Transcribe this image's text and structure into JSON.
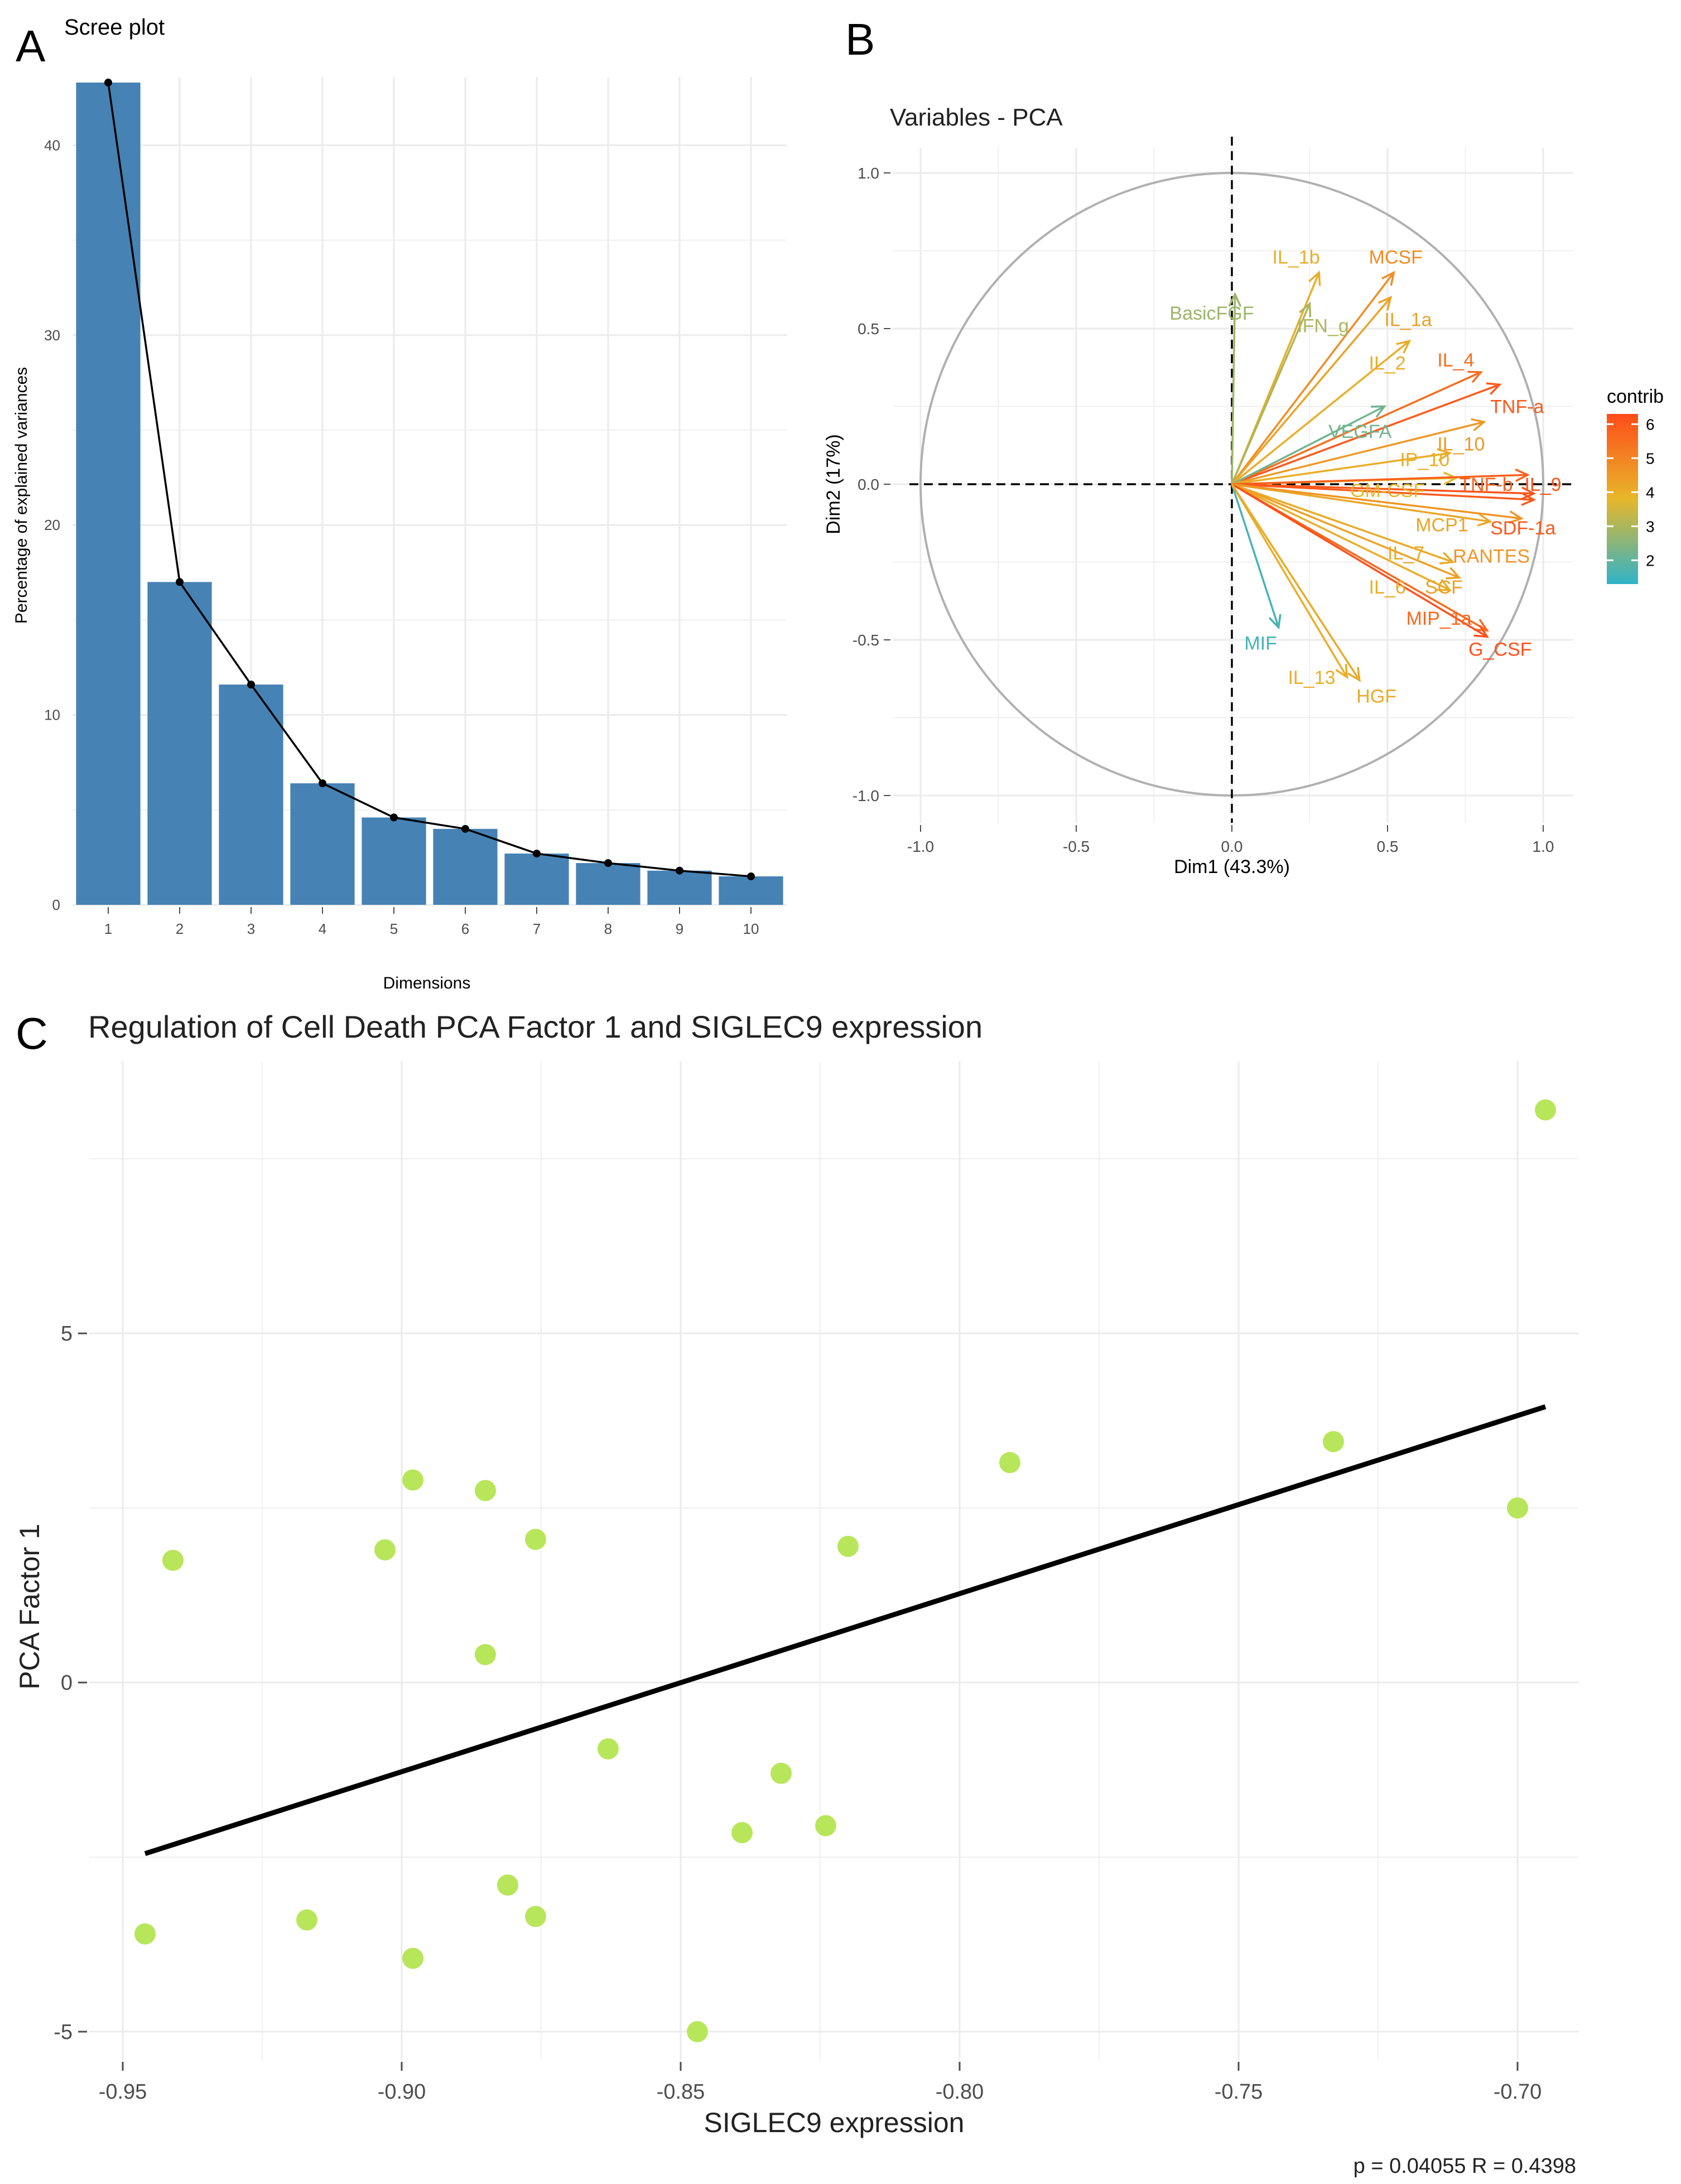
{
  "panels": {
    "a": "A",
    "b": "B",
    "c": "C"
  },
  "colors": {
    "bar": "#4682b4",
    "line": "#000000",
    "grid": "#ebebeb",
    "scatter_point": "#b8e65a",
    "fit_line": "#000000",
    "contrib_low": "#2fb3c8",
    "contrib_mid": "#e7b72a",
    "contrib_high": "#ff4c1a",
    "circle": "#b0b0b0"
  },
  "chart_data": [
    {
      "type": "bar",
      "title": "Scree plot",
      "xlabel": "Dimensions",
      "ylabel": "Percentage of explained variances",
      "categories": [
        "1",
        "2",
        "3",
        "4",
        "5",
        "6",
        "7",
        "8",
        "9",
        "10"
      ],
      "values": [
        43.3,
        17.0,
        11.6,
        6.4,
        4.6,
        4.0,
        2.7,
        2.2,
        1.8,
        1.5
      ],
      "line_overlay": true,
      "ylim": [
        0,
        43.3
      ],
      "yticks": [
        "0",
        "10",
        "20",
        "30",
        "40"
      ],
      "grid": true
    },
    {
      "type": "scatter",
      "title": "Variables - PCA",
      "xlabel": "Dim1 (43.3%)",
      "ylabel": "Dim2 (17%)",
      "xlim": [
        -1.0,
        1.0
      ],
      "ylim": [
        -1.0,
        1.0
      ],
      "xticks": [
        "-1.0",
        "-0.5",
        "0.0",
        "0.5",
        "1.0"
      ],
      "yticks": [
        "-1.0",
        "-0.5",
        "0.0",
        "0.5",
        "1.0"
      ],
      "legend_title": "contrib",
      "legend_ticks": [
        "2",
        "3",
        "4",
        "5",
        "6"
      ],
      "legend_range": [
        1.3,
        6.3
      ],
      "legend_position": "right",
      "grid": true,
      "vectors": [
        {
          "label": "BasicFGF",
          "x": 0.01,
          "y": 0.61,
          "contrib": 2.8,
          "label_x": -0.2,
          "label_y": 0.55,
          "anchor": "start"
        },
        {
          "label": "IL_1b",
          "x": 0.28,
          "y": 0.68,
          "contrib": 4.0,
          "label_x": 0.13,
          "label_y": 0.73,
          "anchor": "start"
        },
        {
          "label": "MCSF",
          "x": 0.52,
          "y": 0.68,
          "contrib": 4.8,
          "label_x": 0.44,
          "label_y": 0.73,
          "anchor": "start"
        },
        {
          "label": "IFN_g",
          "x": 0.25,
          "y": 0.58,
          "contrib": 3.0,
          "label_x": 0.21,
          "label_y": 0.51,
          "anchor": "start"
        },
        {
          "label": "IL_1a",
          "x": 0.51,
          "y": 0.6,
          "contrib": 4.3,
          "label_x": 0.49,
          "label_y": 0.53,
          "anchor": "start"
        },
        {
          "label": "IL_2",
          "x": 0.57,
          "y": 0.46,
          "contrib": 4.0,
          "label_x": 0.44,
          "label_y": 0.39,
          "anchor": "start"
        },
        {
          "label": "IL_4",
          "x": 0.8,
          "y": 0.36,
          "contrib": 5.5,
          "label_x": 0.66,
          "label_y": 0.4,
          "anchor": "start"
        },
        {
          "label": "TNF-a",
          "x": 0.86,
          "y": 0.32,
          "contrib": 6.0,
          "label_x": 0.83,
          "label_y": 0.25,
          "anchor": "start"
        },
        {
          "label": "VEGFA",
          "x": 0.49,
          "y": 0.25,
          "contrib": 2.2,
          "label_x": 0.31,
          "label_y": 0.17,
          "anchor": "start"
        },
        {
          "label": "IL_10",
          "x": 0.81,
          "y": 0.2,
          "contrib": 4.5,
          "label_x": 0.66,
          "label_y": 0.13,
          "anchor": "start"
        },
        {
          "label": "IP_10",
          "x": 0.7,
          "y": 0.1,
          "contrib": 4.0,
          "label_x": 0.54,
          "label_y": 0.08,
          "anchor": "start"
        },
        {
          "label": "GM-CSF",
          "x": 0.72,
          "y": 0.02,
          "contrib": 3.8,
          "label_x": 0.38,
          "label_y": -0.02,
          "anchor": "start"
        },
        {
          "label": "TNF-b",
          "x": 0.95,
          "y": 0.03,
          "contrib": 5.8,
          "label_x": 0.73,
          "label_y": 0.0,
          "anchor": "start"
        },
        {
          "label": "IL_9",
          "x": 0.97,
          "y": -0.03,
          "contrib": 6.1,
          "label_x": 0.94,
          "label_y": 0.0,
          "anchor": "start"
        },
        {
          "label": "MCP1",
          "x": 0.83,
          "y": -0.12,
          "contrib": 4.2,
          "label_x": 0.59,
          "label_y": -0.13,
          "anchor": "start"
        },
        {
          "label": "SDF-1a",
          "x": 0.97,
          "y": -0.05,
          "contrib": 6.0,
          "label_x": 0.83,
          "label_y": -0.14,
          "anchor": "start"
        },
        {
          "label": "IL_7",
          "x": 0.71,
          "y": -0.25,
          "contrib": 4.1,
          "label_x": 0.5,
          "label_y": -0.22,
          "anchor": "start"
        },
        {
          "label": "RANTES",
          "x": 0.93,
          "y": -0.11,
          "contrib": 4.6,
          "label_x": 0.71,
          "label_y": -0.23,
          "anchor": "start"
        },
        {
          "label": "IL_6",
          "x": 0.7,
          "y": -0.34,
          "contrib": 4.0,
          "label_x": 0.44,
          "label_y": -0.33,
          "anchor": "start"
        },
        {
          "label": "SCF",
          "x": 0.73,
          "y": -0.3,
          "contrib": 4.3,
          "label_x": 0.62,
          "label_y": -0.33,
          "anchor": "start"
        },
        {
          "label": "MIP_1a",
          "x": 0.82,
          "y": -0.47,
          "contrib": 5.6,
          "label_x": 0.56,
          "label_y": -0.43,
          "anchor": "start"
        },
        {
          "label": "G_CSF",
          "x": 0.82,
          "y": -0.49,
          "contrib": 6.2,
          "label_x": 0.76,
          "label_y": -0.53,
          "anchor": "start"
        },
        {
          "label": "MIF",
          "x": 0.15,
          "y": -0.46,
          "contrib": 1.6,
          "label_x": 0.04,
          "label_y": -0.51,
          "anchor": "start"
        },
        {
          "label": "IL_13",
          "x": 0.37,
          "y": -0.62,
          "contrib": 4.0,
          "label_x": 0.18,
          "label_y": -0.62,
          "anchor": "start"
        },
        {
          "label": "HGF",
          "x": 0.41,
          "y": -0.63,
          "contrib": 4.1,
          "label_x": 0.4,
          "label_y": -0.68,
          "anchor": "start"
        }
      ]
    },
    {
      "type": "scatter",
      "title": "Regulation of Cell Death PCA Factor 1 and SIGLEC9 expression",
      "xlabel": "SIGLEC9 expression",
      "ylabel": "PCA Factor 1",
      "xlim": [
        -0.956,
        -0.689
      ],
      "ylim": [
        -5.4,
        8.9
      ],
      "xticks": [
        "-0.95",
        "-0.90",
        "-0.85",
        "-0.80",
        "-0.75",
        "-0.70"
      ],
      "yticks": [
        "-5",
        "0",
        "5"
      ],
      "grid": true,
      "points": [
        {
          "x": -0.946,
          "y": -3.6
        },
        {
          "x": -0.941,
          "y": 1.75
        },
        {
          "x": -0.917,
          "y": -3.4
        },
        {
          "x": -0.903,
          "y": 1.9
        },
        {
          "x": -0.898,
          "y": 2.9
        },
        {
          "x": -0.898,
          "y": -3.95
        },
        {
          "x": -0.885,
          "y": 2.75
        },
        {
          "x": -0.885,
          "y": 0.4
        },
        {
          "x": -0.881,
          "y": -2.9
        },
        {
          "x": -0.876,
          "y": 2.05
        },
        {
          "x": -0.876,
          "y": -3.35
        },
        {
          "x": -0.863,
          "y": -0.95
        },
        {
          "x": -0.847,
          "y": -5.0
        },
        {
          "x": -0.839,
          "y": -2.15
        },
        {
          "x": -0.832,
          "y": -1.3
        },
        {
          "x": -0.824,
          "y": -2.05
        },
        {
          "x": -0.82,
          "y": 1.95
        },
        {
          "x": -0.791,
          "y": 3.15
        },
        {
          "x": -0.733,
          "y": 3.45
        },
        {
          "x": -0.7,
          "y": 2.5
        },
        {
          "x": -0.695,
          "y": 8.2
        }
      ],
      "fit_line": {
        "x": [
          -0.946,
          -0.695
        ],
        "y": [
          -2.45,
          3.95
        ]
      },
      "annotation": "p = 0.04055   R = 0.4398"
    }
  ]
}
